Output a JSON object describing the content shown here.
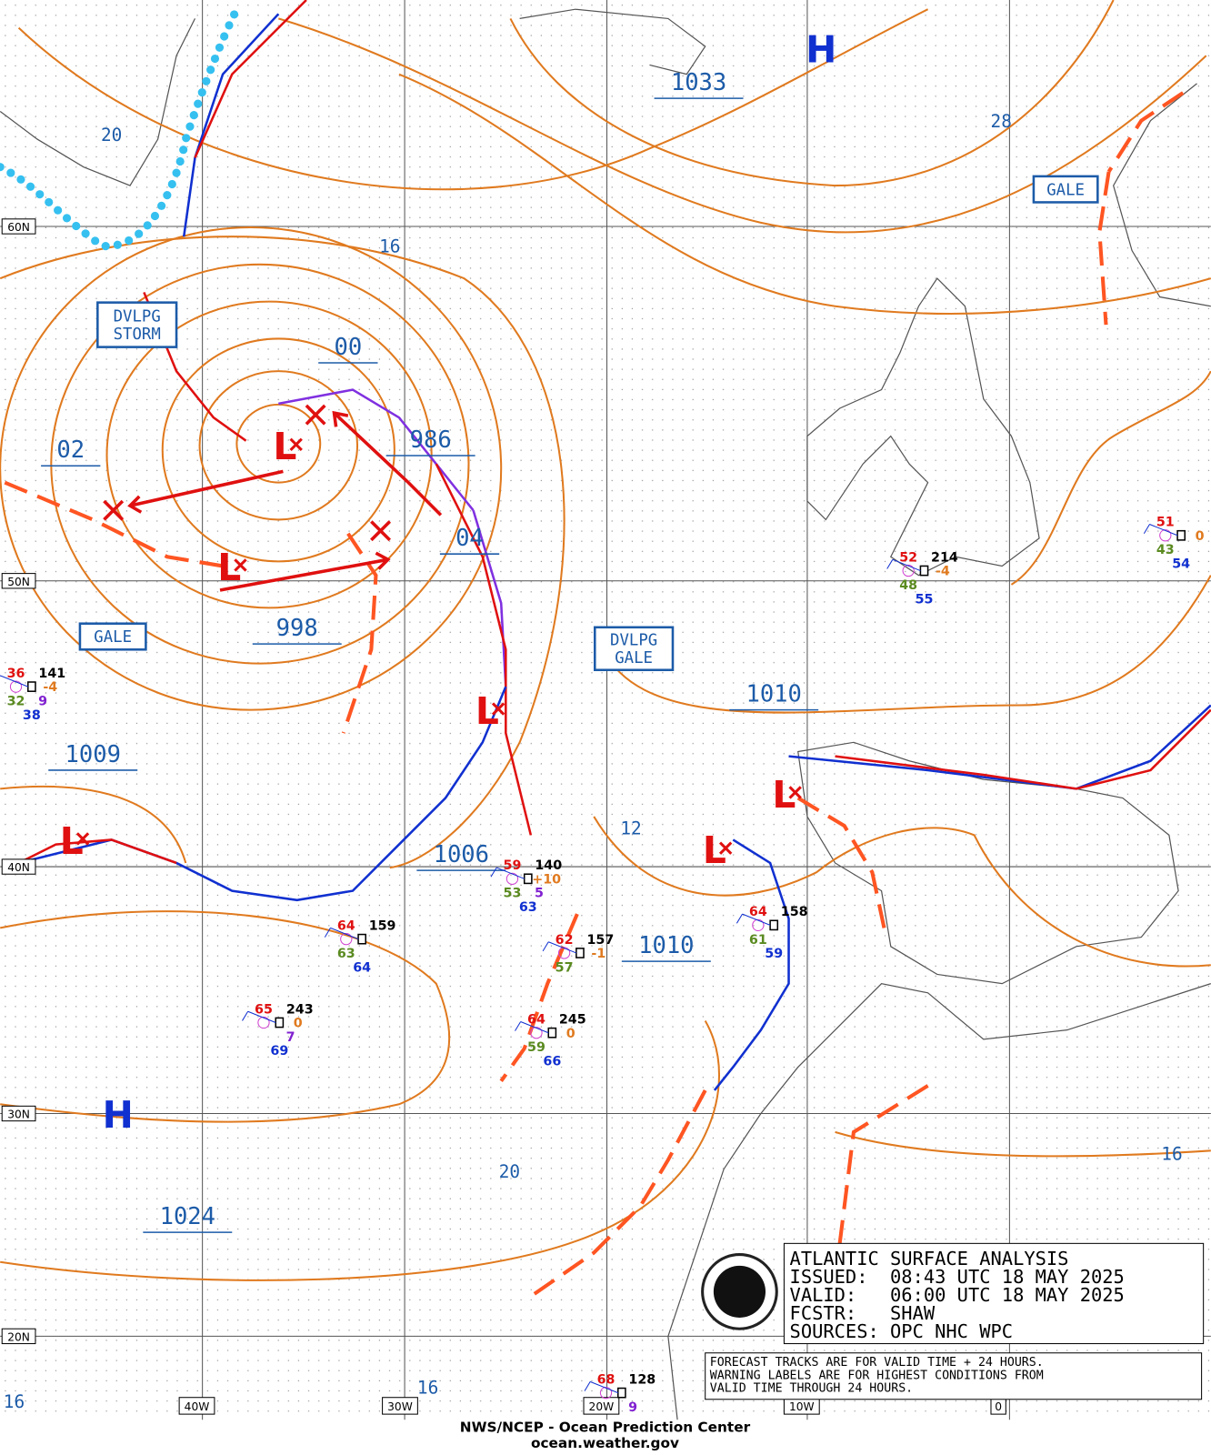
{
  "title_box": {
    "lines": [
      "ATLANTIC SURFACE ANALYSIS",
      "ISSUED:  08:43 UTC 18 MAY 2025",
      "VALID:   06:00 UTC 18 MAY 2025",
      "FCSTR:   SHAW",
      "SOURCES: OPC NHC WPC"
    ]
  },
  "note": {
    "lines": [
      "FORECAST TRACKS ARE FOR VALID TIME + 24 HOURS.",
      "WARNING LABELS ARE FOR HIGHEST CONDITIONS FROM",
      "VALID TIME THROUGH 24 HOURS."
    ]
  },
  "footer": {
    "agency": "NWS/NCEP - Ocean Prediction Center",
    "url": "ocean.weather.gov"
  },
  "grid_labels": {
    "lat": [
      "60N",
      "50N",
      "40N",
      "30N",
      "20N"
    ],
    "lon": [
      "40W",
      "30W",
      "20W",
      "10W",
      "0"
    ]
  },
  "centers": {
    "highs": [
      "H",
      "H"
    ],
    "lows": [
      "L",
      "L",
      "L",
      "L",
      "L",
      "L"
    ]
  },
  "pressures": [
    "1033",
    "986",
    "998",
    "1009",
    "1006",
    "1010",
    "1010",
    "1024"
  ],
  "isobar_labels": [
    "00",
    "02",
    "04",
    "16",
    "20",
    "28",
    "12",
    "16",
    "20",
    "16",
    "16"
  ],
  "warnings": [
    [
      "DVLPG",
      "STORM"
    ],
    [
      "GALE"
    ],
    [
      "GALE"
    ],
    [
      "DVLPG",
      "GALE"
    ]
  ],
  "stations": [
    {
      "temp": "36",
      "pressure": "141",
      "tendency": "-4",
      "dewpoint": "32",
      "extra": "9",
      "sst": "38"
    },
    {
      "temp": "52",
      "pressure": "214",
      "tendency": "-4",
      "dewpoint": "48",
      "sst": "55"
    },
    {
      "temp": "51",
      "tendency": "0",
      "dewpoint": "43",
      "sst": "54"
    },
    {
      "temp": "59",
      "pressure": "140",
      "tendency": "+10",
      "dewpoint": "53",
      "extra": "5",
      "sst": "63"
    },
    {
      "temp": "64",
      "pressure": "159",
      "dewpoint": "63",
      "sst": "64"
    },
    {
      "temp": "62",
      "pressure": "157",
      "tendency": "-1",
      "dewpoint": "57"
    },
    {
      "temp": "64",
      "pressure": "158",
      "dewpoint": "61",
      "sst": "59"
    },
    {
      "temp": "65",
      "pressure": "243",
      "tendency": "0",
      "extra": "7",
      "sst": "69"
    },
    {
      "temp": "64",
      "pressure": "245",
      "tendency": "0",
      "dewpoint": "59",
      "sst": "66"
    },
    {
      "temp": "68",
      "pressure": "128",
      "extra": "9"
    }
  ]
}
